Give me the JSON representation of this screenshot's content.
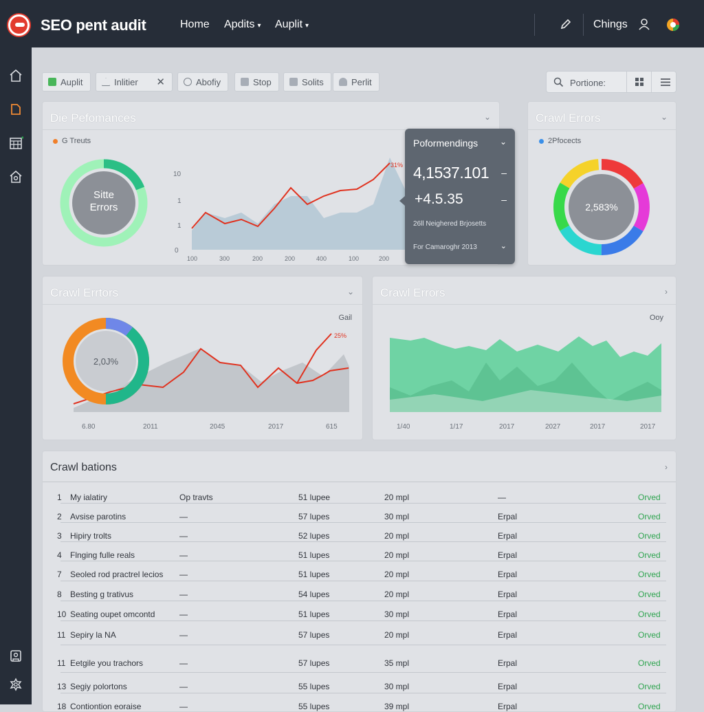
{
  "app": {
    "title": "SEO pent audit"
  },
  "topnav": {
    "home": "Home",
    "apdits": "Apdits",
    "auplit": "Auplit",
    "chings": "Chings"
  },
  "toolbar": {
    "chips": [
      "Auplit",
      "Inlitier",
      "Abofiy",
      "Stop",
      "Solits",
      "Perlit"
    ],
    "search_placeholder": "Portione:"
  },
  "panel_performance": {
    "title": "Die Pefomances",
    "legend": "G Treuts",
    "donut_label_1": "Sitte",
    "donut_label_2": "Errors",
    "y_ticks": [
      "10",
      "1",
      "1",
      "0"
    ],
    "x_ticks": [
      "100",
      "300",
      "200",
      "200",
      "400",
      "100",
      "200"
    ],
    "peak_label": "31%"
  },
  "tooltip": {
    "title": "Poformendings",
    "value1": "4,1537.101",
    "value2": "+4.5.35",
    "sub": "26ll Neighered Brjosetts",
    "footer": "For Camaroghr 2013"
  },
  "panel_crawl_small": {
    "title": "Crawl Errors",
    "legend": "2Pfocects",
    "donut_value": "2,583%"
  },
  "panel_crawl_left": {
    "title": "Crawl Errtors",
    "legend": "Gail",
    "donut_value": "2,0J%",
    "peak_label": "25%",
    "x_ticks": [
      "6.80",
      "2011",
      "2045",
      "2017",
      "615"
    ]
  },
  "panel_crawl_right": {
    "title": "Crawl Errors",
    "legend": "Ooy",
    "x_ticks": [
      "1/40",
      "1/17",
      "2017",
      "2027",
      "2017",
      "2017"
    ]
  },
  "table": {
    "title": "Crawl bations",
    "rows": [
      {
        "n": "1",
        "name": "My ialatiry",
        "c2": "Op travts",
        "c3": "51 lupee",
        "c4": "20 mpl",
        "c5": "—",
        "status": "Orved"
      },
      {
        "n": "2",
        "name": "Avsise parotins",
        "c2": "—",
        "c3": "57 lupes",
        "c4": "30 mpl",
        "c5": "Erpal",
        "status": "Orved"
      },
      {
        "n": "3",
        "name": "Hipiry trolts",
        "c2": "—",
        "c3": "52 lupes",
        "c4": "20 mpl",
        "c5": "Erpal",
        "status": "Orved"
      },
      {
        "n": "4",
        "name": "Flnging fulle reals",
        "c2": "—",
        "c3": "51 lupes",
        "c4": "20 mpl",
        "c5": "Erpal",
        "status": "Orved"
      },
      {
        "n": "7",
        "name": "Seoled rod practrel lecios",
        "c2": "—",
        "c3": "51 lupes",
        "c4": "20 mpl",
        "c5": "Erpal",
        "status": "Orved"
      },
      {
        "n": "8",
        "name": "Besting g trativus",
        "c2": "—",
        "c3": "54 lupes",
        "c4": "20 mpl",
        "c5": "Erpal",
        "status": "Orved"
      },
      {
        "n": "10",
        "name": "Seating oupet omcontd",
        "c2": "—",
        "c3": "51 lupes",
        "c4": "30 mpl",
        "c5": "Erpal",
        "status": "Orved"
      },
      {
        "n": "11",
        "name": "Sepiry la NA",
        "c2": "—",
        "c3": "57 lupes",
        "c4": "20 mpl",
        "c5": "Erpal",
        "status": "Orved"
      },
      {
        "n": "11",
        "name": "Eetgile you trachors",
        "c2": "—",
        "c3": "57 lupes",
        "c4": "35 mpl",
        "c5": "Erpal",
        "status": "Orved"
      },
      {
        "n": "13",
        "name": "Segiy polortons",
        "c2": "—",
        "c3": "55 lupes",
        "c4": "30 mpl",
        "c5": "Erpal",
        "status": "Orved"
      },
      {
        "n": "18",
        "name": "Contiontion eoraise",
        "c2": "—",
        "c3": "55 lupes",
        "c4": "39 mpl",
        "c5": "Erpal",
        "status": "Orved"
      }
    ]
  },
  "colors": {
    "accent": "#e23b2e",
    "status_green": "#2ea44f",
    "topbar": "#262d38",
    "line_red": "#e0321f",
    "area_blue": "#b9cbd7",
    "area_green": "#6fd3a4"
  },
  "icons": {
    "logo": "bird-logo-icon",
    "edit": "pencil-icon",
    "user": "user-icon",
    "profile": "color-wheel-icon"
  }
}
